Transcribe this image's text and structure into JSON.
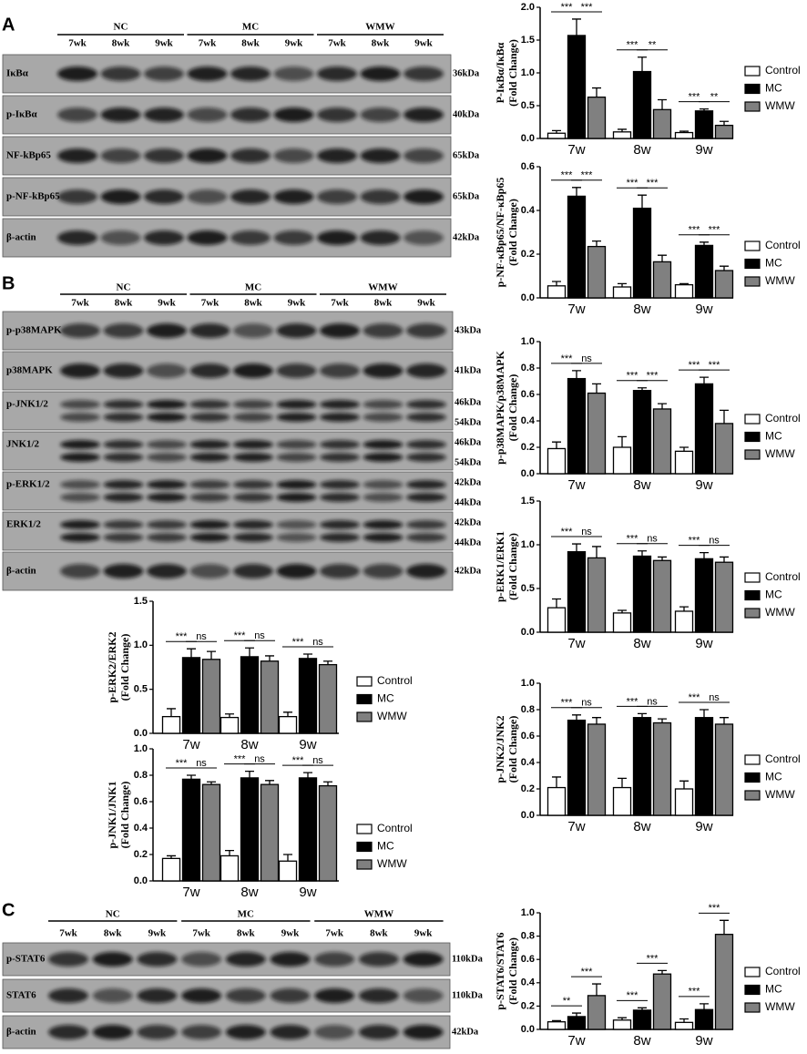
{
  "panels": [
    {
      "label": "A",
      "groups": [
        {
          "name": "NC",
          "lanes": [
            "7wk",
            "8wk",
            "9wk"
          ]
        },
        {
          "name": "MC",
          "lanes": [
            "7wk",
            "8wk",
            "9wk"
          ]
        },
        {
          "name": "WMW",
          "lanes": [
            "7wk",
            "8wk",
            "9wk"
          ]
        }
      ],
      "rows": [
        {
          "name": "IκBα",
          "kda": [
            "36kDa"
          ]
        },
        {
          "name": "p-IκBα",
          "kda": [
            "40kDa"
          ]
        },
        {
          "name": "NF-kBp65",
          "kda": [
            "65kDa"
          ]
        },
        {
          "name": "p-NF-kBp65",
          "kda": [
            "65kDa"
          ]
        },
        {
          "name": "β-actin",
          "kda": [
            "42kDa"
          ]
        }
      ]
    },
    {
      "label": "B",
      "groups": [
        {
          "name": "NC",
          "lanes": [
            "7wk",
            "8wk",
            "9wk"
          ]
        },
        {
          "name": "MC",
          "lanes": [
            "7wk",
            "8wk",
            "9wk"
          ]
        },
        {
          "name": "WMW",
          "lanes": [
            "7wk",
            "8wk",
            "9wk"
          ]
        }
      ],
      "rows": [
        {
          "name": "p-p38MAPK",
          "kda": [
            "43kDa"
          ]
        },
        {
          "name": "p38MAPK",
          "kda": [
            "41kDa"
          ]
        },
        {
          "name": "p-JNK1/2",
          "kda": [
            "46kDa",
            "54kDa"
          ]
        },
        {
          "name": "JNK1/2",
          "kda": [
            "46kDa",
            "54kDa"
          ]
        },
        {
          "name": "p-ERK1/2",
          "kda": [
            "42kDa",
            "44kDa"
          ]
        },
        {
          "name": "ERK1/2",
          "kda": [
            "42kDa",
            "44kDa"
          ]
        },
        {
          "name": "β-actin",
          "kda": [
            "42kDa"
          ]
        }
      ]
    },
    {
      "label": "C",
      "groups": [
        {
          "name": "NC",
          "lanes": [
            "7wk",
            "8wk",
            "9wk"
          ]
        },
        {
          "name": "MC",
          "lanes": [
            "7wk",
            "8wk",
            "9wk"
          ]
        },
        {
          "name": "WMW",
          "lanes": [
            "7wk",
            "8wk",
            "9wk"
          ]
        }
      ],
      "rows": [
        {
          "name": "p-STAT6",
          "kda": [
            "110kDa"
          ]
        },
        {
          "name": "STAT6",
          "kda": [
            "110kDa"
          ]
        },
        {
          "name": "β-actin",
          "kda": [
            "42kDa"
          ]
        }
      ]
    }
  ],
  "chart_data": [
    {
      "type": "bar",
      "ylabel": [
        "P-IκBα/IκBα",
        "(Fold Change)"
      ],
      "categories": [
        "7w",
        "8w",
        "9w"
      ],
      "series": [
        {
          "name": "Control",
          "color": "#ffffff",
          "values": [
            0.08,
            0.1,
            0.09
          ],
          "errors": [
            0.04,
            0.04,
            0.02
          ]
        },
        {
          "name": "MC",
          "color": "#000000",
          "values": [
            1.57,
            1.02,
            0.42
          ],
          "errors": [
            0.25,
            0.22,
            0.03
          ]
        },
        {
          "name": "WMW",
          "color": "#808080",
          "values": [
            0.63,
            0.44,
            0.2
          ],
          "errors": [
            0.14,
            0.15,
            0.06
          ]
        }
      ],
      "significance": [
        [
          "***",
          "***"
        ],
        [
          "***",
          "**"
        ],
        [
          "***",
          "**"
        ]
      ],
      "ylim": [
        0,
        2
      ],
      "yticks": [
        {
          "value": 0,
          "label": "0.0"
        },
        0.5,
        {
          "value": 1,
          "label": "1.0"
        },
        1.5,
        {
          "value": 2,
          "label": "2.0"
        }
      ]
    },
    {
      "type": "bar",
      "ylabel": [
        "p-NF-κBp65/NF-κBp65",
        "(Fold Change)"
      ],
      "categories": [
        "7w",
        "8w",
        "9w"
      ],
      "series": [
        {
          "name": "Control",
          "color": "#ffffff",
          "values": [
            0.055,
            0.05,
            0.06
          ],
          "errors": [
            0.02,
            0.015,
            0.005
          ]
        },
        {
          "name": "MC",
          "color": "#000000",
          "values": [
            0.465,
            0.41,
            0.24
          ],
          "errors": [
            0.04,
            0.06,
            0.015
          ]
        },
        {
          "name": "WMW",
          "color": "#808080",
          "values": [
            0.235,
            0.165,
            0.125
          ],
          "errors": [
            0.025,
            0.03,
            0.02
          ]
        }
      ],
      "significance": [
        [
          "***",
          "***"
        ],
        [
          "***",
          "***"
        ],
        [
          "***",
          "***"
        ]
      ],
      "ylim": [
        0,
        0.6
      ],
      "yticks": [
        {
          "value": 0,
          "label": "0.0"
        },
        0.2,
        0.4,
        0.6
      ]
    },
    {
      "type": "bar",
      "ylabel": [
        "p-p38MAPK/p38MAPK",
        "(Fold Change)"
      ],
      "categories": [
        "7w",
        "8w",
        "9w"
      ],
      "series": [
        {
          "name": "Control",
          "color": "#ffffff",
          "values": [
            0.19,
            0.2,
            0.17
          ],
          "errors": [
            0.05,
            0.08,
            0.03
          ]
        },
        {
          "name": "MC",
          "color": "#000000",
          "values": [
            0.72,
            0.63,
            0.68
          ],
          "errors": [
            0.06,
            0.02,
            0.05
          ]
        },
        {
          "name": "WMW",
          "color": "#808080",
          "values": [
            0.61,
            0.49,
            0.38
          ],
          "errors": [
            0.07,
            0.04,
            0.1
          ]
        }
      ],
      "significance": [
        [
          "***",
          "ns"
        ],
        [
          "***",
          "***"
        ],
        [
          "***",
          "***"
        ]
      ],
      "ylim": [
        0,
        1
      ],
      "yticks": [
        {
          "value": 0,
          "label": "0.0"
        },
        0.2,
        0.4,
        0.6,
        0.8,
        {
          "value": 1,
          "label": "1.0"
        }
      ]
    },
    {
      "type": "bar",
      "ylabel": [
        "p-ERK1/ERK1",
        "(Fold Change)"
      ],
      "categories": [
        "7w",
        "8w",
        "9w"
      ],
      "series": [
        {
          "name": "Control",
          "color": "#ffffff",
          "values": [
            0.28,
            0.22,
            0.24
          ],
          "errors": [
            0.1,
            0.03,
            0.05
          ]
        },
        {
          "name": "MC",
          "color": "#000000",
          "values": [
            0.92,
            0.87,
            0.84
          ],
          "errors": [
            0.09,
            0.06,
            0.07
          ]
        },
        {
          "name": "WMW",
          "color": "#808080",
          "values": [
            0.85,
            0.82,
            0.8
          ],
          "errors": [
            0.13,
            0.04,
            0.06
          ]
        }
      ],
      "significance": [
        [
          "***",
          "ns"
        ],
        [
          "***",
          "ns"
        ],
        [
          "***",
          "ns"
        ]
      ],
      "ylim": [
        0,
        1.5
      ],
      "yticks": [
        {
          "value": 0,
          "label": "0.0"
        },
        0.5,
        {
          "value": 1,
          "label": "1.0"
        },
        1.5
      ]
    },
    {
      "type": "bar",
      "ylabel": [
        "p-JNK2/JNK2",
        "(Fold Change)"
      ],
      "categories": [
        "7w",
        "8w",
        "9w"
      ],
      "series": [
        {
          "name": "Control",
          "color": "#ffffff",
          "values": [
            0.21,
            0.21,
            0.2
          ],
          "errors": [
            0.08,
            0.07,
            0.06
          ]
        },
        {
          "name": "MC",
          "color": "#000000",
          "values": [
            0.72,
            0.74,
            0.74
          ],
          "errors": [
            0.04,
            0.03,
            0.06
          ]
        },
        {
          "name": "WMW",
          "color": "#808080",
          "values": [
            0.69,
            0.7,
            0.69
          ],
          "errors": [
            0.05,
            0.03,
            0.05
          ]
        }
      ],
      "significance": [
        [
          "***",
          "ns"
        ],
        [
          "***",
          "ns"
        ],
        [
          "***",
          "ns"
        ]
      ],
      "ylim": [
        0,
        1
      ],
      "yticks": [
        {
          "value": 0,
          "label": "0.0"
        },
        0.2,
        0.4,
        0.6,
        0.8,
        {
          "value": 1,
          "label": "1.0"
        }
      ]
    },
    {
      "type": "bar",
      "ylabel": [
        "p-ERK2/ERK2",
        "(Fold Change)"
      ],
      "categories": [
        "7w",
        "8w",
        "9w"
      ],
      "series": [
        {
          "name": "Control",
          "color": "#ffffff",
          "values": [
            0.19,
            0.18,
            0.19
          ],
          "errors": [
            0.09,
            0.04,
            0.05
          ]
        },
        {
          "name": "MC",
          "color": "#000000",
          "values": [
            0.86,
            0.87,
            0.85
          ],
          "errors": [
            0.1,
            0.1,
            0.05
          ]
        },
        {
          "name": "WMW",
          "color": "#808080",
          "values": [
            0.84,
            0.82,
            0.78
          ],
          "errors": [
            0.09,
            0.06,
            0.04
          ]
        }
      ],
      "significance": [
        [
          "***",
          "ns"
        ],
        [
          "***",
          "ns"
        ],
        [
          "***",
          "ns"
        ]
      ],
      "ylim": [
        0,
        1.5
      ],
      "yticks": [
        {
          "value": 0,
          "label": "0.0"
        },
        0.5,
        {
          "value": 1,
          "label": "1.0"
        },
        1.5
      ]
    },
    {
      "type": "bar",
      "ylabel": [
        "p-JNK1/JNK1",
        "(Fold Change)"
      ],
      "categories": [
        "7w",
        "8w",
        "9w"
      ],
      "series": [
        {
          "name": "Control",
          "color": "#ffffff",
          "values": [
            0.17,
            0.19,
            0.15
          ],
          "errors": [
            0.02,
            0.04,
            0.05
          ]
        },
        {
          "name": "MC",
          "color": "#000000",
          "values": [
            0.77,
            0.78,
            0.78
          ],
          "errors": [
            0.03,
            0.05,
            0.04
          ]
        },
        {
          "name": "WMW",
          "color": "#808080",
          "values": [
            0.73,
            0.73,
            0.72
          ],
          "errors": [
            0.02,
            0.03,
            0.03
          ]
        }
      ],
      "significance": [
        [
          "***",
          "ns"
        ],
        [
          "***",
          "ns"
        ],
        [
          "***",
          "ns"
        ]
      ],
      "ylim": [
        0,
        1
      ],
      "yticks": [
        {
          "value": 0,
          "label": "0.0"
        },
        0.2,
        0.4,
        0.6,
        0.8,
        {
          "value": 1,
          "label": "1.0"
        }
      ]
    },
    {
      "type": "bar",
      "ylabel": [
        "p-STAT6/STAT6",
        "(Fold Change)"
      ],
      "categories": [
        "7w",
        "8w",
        "9w"
      ],
      "series": [
        {
          "name": "Control",
          "color": "#ffffff",
          "values": [
            0.065,
            0.08,
            0.06
          ],
          "errors": [
            0.01,
            0.02,
            0.03
          ]
        },
        {
          "name": "MC",
          "color": "#000000",
          "values": [
            0.11,
            0.165,
            0.17
          ],
          "errors": [
            0.03,
            0.02,
            0.05
          ]
        },
        {
          "name": "WMW",
          "color": "#808080",
          "values": [
            0.29,
            0.475,
            0.815
          ],
          "errors": [
            0.1,
            0.03,
            0.12
          ]
        }
      ],
      "significance": [
        [
          "**",
          "***"
        ],
        [
          "***",
          "***"
        ],
        [
          "***",
          "***"
        ]
      ],
      "ylim": [
        0,
        1
      ],
      "yticks": [
        {
          "value": 0,
          "label": "0.0"
        },
        0.2,
        0.4,
        0.6,
        0.8,
        {
          "value": 1,
          "label": "1.0"
        }
      ]
    }
  ]
}
